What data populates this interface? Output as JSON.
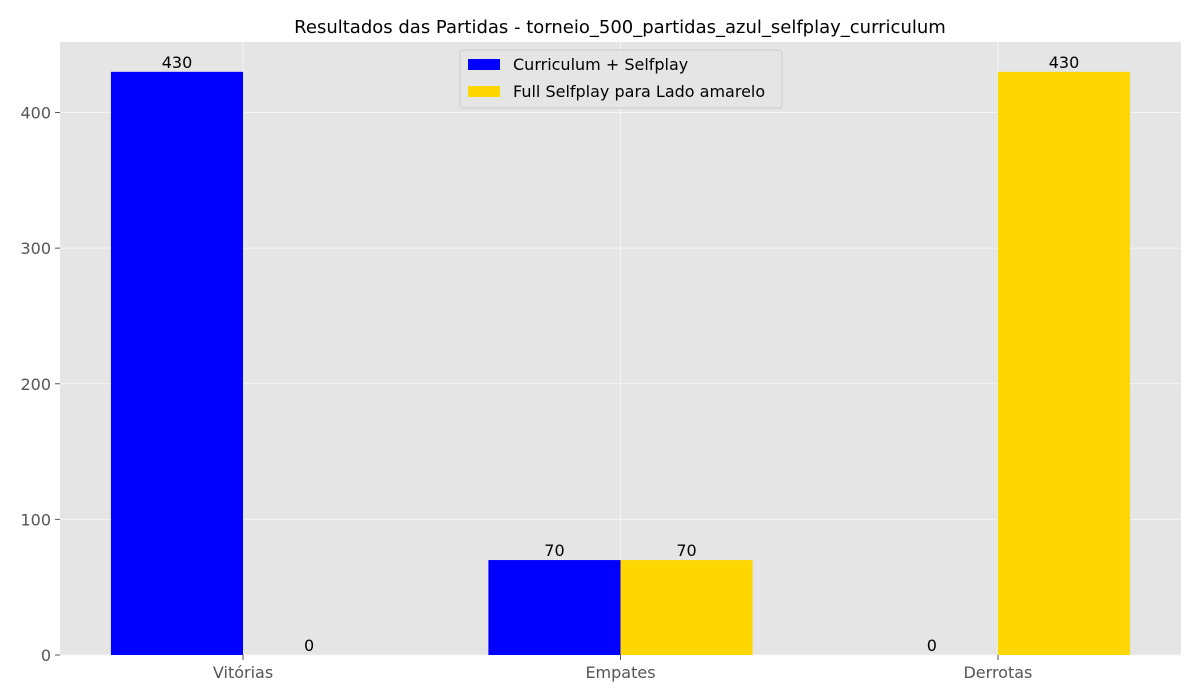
{
  "chart_data": {
    "type": "bar",
    "title": "Resultados das Partidas - torneio_500_partidas_azul_selfplay_curriculum",
    "xlabel": "",
    "ylabel": "",
    "categories": [
      "Vitórias",
      "Empates",
      "Derrotas"
    ],
    "series": [
      {
        "name": "Curriculum + Selfplay",
        "values": [
          430,
          70,
          0
        ],
        "color": "#0000ff"
      },
      {
        "name": "Full Selfplay para Lado amarelo",
        "values": [
          0,
          70,
          430
        ],
        "color": "#ffd700"
      }
    ],
    "ylim": [
      0,
      452
    ],
    "yticks": [
      0,
      100,
      200,
      300,
      400
    ],
    "grid": true,
    "legend_position": "top-center",
    "plot_background": "#e5e5e5",
    "grid_color": "#f5f5f5"
  }
}
